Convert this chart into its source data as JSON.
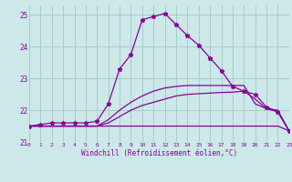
{
  "background_color": "#cce8e8",
  "grid_color": "#aacccc",
  "line_color": "#880099",
  "xlabel": "Windchill (Refroidissement éolien,°C)",
  "xlim": [
    0,
    23
  ],
  "ylim": [
    21.0,
    25.3
  ],
  "yticks": [
    21,
    22,
    23,
    24,
    25
  ],
  "xticks": [
    0,
    1,
    2,
    3,
    4,
    5,
    6,
    7,
    8,
    9,
    10,
    11,
    12,
    13,
    14,
    15,
    16,
    17,
    18,
    19,
    20,
    21,
    22,
    23
  ],
  "curve_main_x": [
    0,
    1,
    2,
    3,
    4,
    5,
    6,
    7,
    8,
    9,
    10,
    11,
    12,
    13,
    14,
    15,
    16,
    17,
    18,
    19,
    20,
    21,
    22,
    23
  ],
  "curve_main_y": [
    21.5,
    21.55,
    21.6,
    21.6,
    21.6,
    21.6,
    21.65,
    22.2,
    23.3,
    23.75,
    24.85,
    24.95,
    25.05,
    24.7,
    24.35,
    24.05,
    23.65,
    23.25,
    22.75,
    22.6,
    22.5,
    22.1,
    21.95,
    21.35
  ],
  "curve_flat_x": [
    0,
    1,
    2,
    3,
    4,
    5,
    6,
    7,
    8,
    9,
    10,
    11,
    12,
    13,
    14,
    15,
    16,
    17,
    18,
    19,
    20,
    21,
    22,
    23
  ],
  "curve_flat_y": [
    21.5,
    21.5,
    21.5,
    21.5,
    21.5,
    21.5,
    21.5,
    21.5,
    21.5,
    21.5,
    21.5,
    21.5,
    21.5,
    21.5,
    21.5,
    21.5,
    21.5,
    21.5,
    21.5,
    21.5,
    21.5,
    21.5,
    21.5,
    21.35
  ],
  "curve_low_x": [
    0,
    1,
    2,
    3,
    4,
    5,
    6,
    7,
    8,
    9,
    10,
    11,
    12,
    13,
    14,
    15,
    16,
    17,
    18,
    19,
    20,
    21,
    22,
    23
  ],
  "curve_low_y": [
    21.5,
    21.5,
    21.5,
    21.5,
    21.5,
    21.5,
    21.5,
    21.6,
    21.8,
    22.0,
    22.15,
    22.25,
    22.35,
    22.45,
    22.5,
    22.52,
    22.54,
    22.56,
    22.57,
    22.6,
    22.35,
    22.05,
    21.95,
    21.35
  ],
  "curve_mid_x": [
    0,
    1,
    2,
    3,
    4,
    5,
    6,
    7,
    8,
    9,
    10,
    11,
    12,
    13,
    14,
    15,
    16,
    17,
    18,
    19,
    20,
    21,
    22,
    23
  ],
  "curve_mid_y": [
    21.5,
    21.5,
    21.5,
    21.5,
    21.5,
    21.5,
    21.5,
    21.7,
    22.0,
    22.25,
    22.45,
    22.6,
    22.7,
    22.75,
    22.78,
    22.78,
    22.78,
    22.78,
    22.78,
    22.78,
    22.2,
    22.05,
    22.0,
    21.35
  ]
}
